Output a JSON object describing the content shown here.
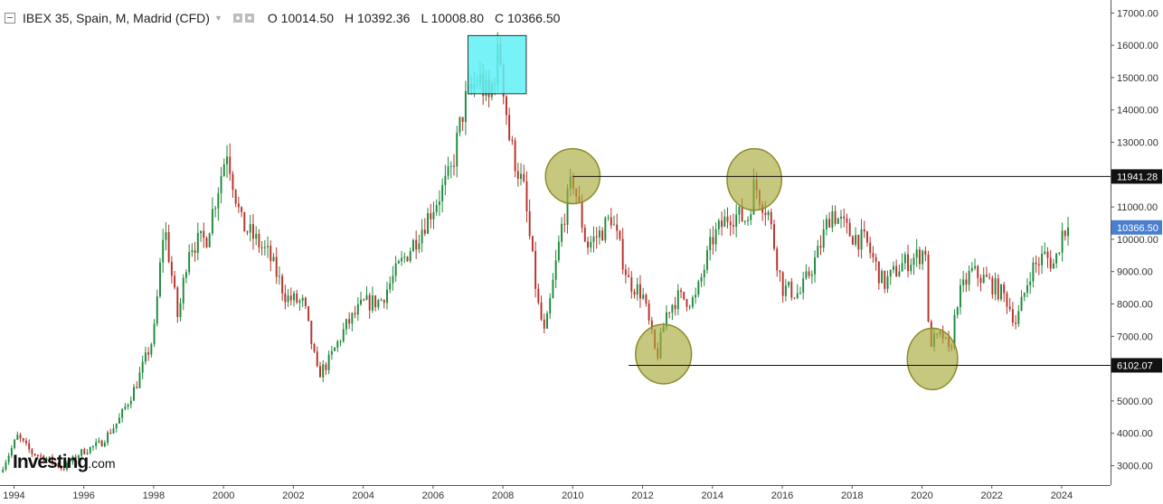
{
  "header": {
    "title": "IBEX 35, Spain, M, Madrid (CFD)",
    "open": "O 10014.50",
    "high": "H 10392.36",
    "low": "L 10008.80",
    "close": "C 10366.50"
  },
  "logo": {
    "brand": "Investing",
    "tld": ".com"
  },
  "chart_data": {
    "type": "candlestick",
    "title": "IBEX 35, Spain, M, Madrid (CFD)",
    "interval": "monthly",
    "x_range": [
      1993.6,
      2025.4
    ],
    "ylim": [
      2400,
      17400
    ],
    "y_ticks": [
      3000,
      4000,
      5000,
      6000,
      7000,
      8000,
      9000,
      10000,
      11000,
      12000,
      13000,
      14000,
      15000,
      16000,
      17000
    ],
    "y_tick_labels": [
      "3000.00",
      "4000.00",
      "5000.00",
      "6000.00",
      "7000.00",
      "8000.00",
      "9000.00",
      "10000.00",
      "11000.00",
      "12000.00",
      "13000.00",
      "14000.00",
      "15000.00",
      "16000.00",
      "17000.00"
    ],
    "x_ticks": [
      1994,
      1996,
      1998,
      2000,
      2002,
      2004,
      2006,
      2008,
      2010,
      2012,
      2014,
      2016,
      2018,
      2020,
      2022,
      2024
    ],
    "x_tick_labels": [
      "1994",
      "1996",
      "1998",
      "2000",
      "2002",
      "2004",
      "2006",
      "2008",
      "2010",
      "2012",
      "2014",
      "2016",
      "2018",
      "2020",
      "2022",
      "2024"
    ],
    "up_color": "#1e8a3c",
    "down_color": "#b5322a",
    "close_path": [
      [
        1993.6,
        2800
      ],
      [
        1994.1,
        3900
      ],
      [
        1994.5,
        3400
      ],
      [
        1995.0,
        3200
      ],
      [
        1995.4,
        2900
      ],
      [
        1995.9,
        3400
      ],
      [
        1996.5,
        3700
      ],
      [
        1997.0,
        4400
      ],
      [
        1997.5,
        5500
      ],
      [
        1998.0,
        7000
      ],
      [
        1998.3,
        10500
      ],
      [
        1998.7,
        7500
      ],
      [
        1999.0,
        9800
      ],
      [
        1999.5,
        10000
      ],
      [
        2000.1,
        12800
      ],
      [
        2000.5,
        10500
      ],
      [
        2000.9,
        10000
      ],
      [
        2001.3,
        9500
      ],
      [
        2001.8,
        8200
      ],
      [
        2002.3,
        8000
      ],
      [
        2002.7,
        5800
      ],
      [
        2003.0,
        6200
      ],
      [
        2003.5,
        7300
      ],
      [
        2004.0,
        8000
      ],
      [
        2004.5,
        8100
      ],
      [
        2005.0,
        9100
      ],
      [
        2005.5,
        10000
      ],
      [
        2006.0,
        11000
      ],
      [
        2006.5,
        12000
      ],
      [
        2006.9,
        14200
      ],
      [
        2007.3,
        15000
      ],
      [
        2007.6,
        14300
      ],
      [
        2007.9,
        15900
      ],
      [
        2008.2,
        13000
      ],
      [
        2008.6,
        11500
      ],
      [
        2009.0,
        8000
      ],
      [
        2009.2,
        7000
      ],
      [
        2009.7,
        10500
      ],
      [
        2010.0,
        11900
      ],
      [
        2010.4,
        9800
      ],
      [
        2010.8,
        10200
      ],
      [
        2011.1,
        10700
      ],
      [
        2011.6,
        8700
      ],
      [
        2012.0,
        8300
      ],
      [
        2012.4,
        6300
      ],
      [
        2012.7,
        7800
      ],
      [
        2013.0,
        8200
      ],
      [
        2013.5,
        8100
      ],
      [
        2014.0,
        10000
      ],
      [
        2014.5,
        10800
      ],
      [
        2015.0,
        10600
      ],
      [
        2015.2,
        11700
      ],
      [
        2015.6,
        10800
      ],
      [
        2016.0,
        8500
      ],
      [
        2016.5,
        8300
      ],
      [
        2017.0,
        9500
      ],
      [
        2017.4,
        10900
      ],
      [
        2017.9,
        10200
      ],
      [
        2018.4,
        9900
      ],
      [
        2018.9,
        8600
      ],
      [
        2019.4,
        9200
      ],
      [
        2019.9,
        9500
      ],
      [
        2020.1,
        9700
      ],
      [
        2020.2,
        6800
      ],
      [
        2020.6,
        7000
      ],
      [
        2020.8,
        6400
      ],
      [
        2021.0,
        8100
      ],
      [
        2021.4,
        9000
      ],
      [
        2021.9,
        8700
      ],
      [
        2022.4,
        8200
      ],
      [
        2022.7,
        7400
      ],
      [
        2023.1,
        9000
      ],
      [
        2023.5,
        9500
      ],
      [
        2023.8,
        9200
      ],
      [
        2024.0,
        10200
      ],
      [
        2024.15,
        10366.5
      ]
    ],
    "horizontal_levels": [
      {
        "value": 11941.28,
        "label": "11941.28",
        "start_x": 2010.0,
        "color": "#111111"
      },
      {
        "value": 6102.07,
        "label": "6102.07",
        "start_x": 2011.6,
        "color": "#111111"
      }
    ],
    "current_price": {
      "value": 10366.5,
      "label": "10366.50",
      "color": "#4a7fd0"
    },
    "annotations": [
      {
        "type": "rectangle",
        "x1": 2007.0,
        "x2": 2008.67,
        "y1": 14500,
        "y2": 16300,
        "color": "#5ff0f5"
      },
      {
        "type": "ellipse",
        "cx": 2010.0,
        "cy": 11950,
        "rx": 0.78,
        "ry": 850,
        "color": "#a9ab3c"
      },
      {
        "type": "ellipse",
        "cx": 2015.2,
        "cy": 11850,
        "rx": 0.78,
        "ry": 950,
        "color": "#a9ab3c"
      },
      {
        "type": "ellipse",
        "cx": 2012.6,
        "cy": 6450,
        "rx": 0.8,
        "ry": 920,
        "color": "#a9ab3c"
      },
      {
        "type": "ellipse",
        "cx": 2020.3,
        "cy": 6300,
        "rx": 0.72,
        "ry": 950,
        "color": "#a9ab3c"
      }
    ]
  }
}
